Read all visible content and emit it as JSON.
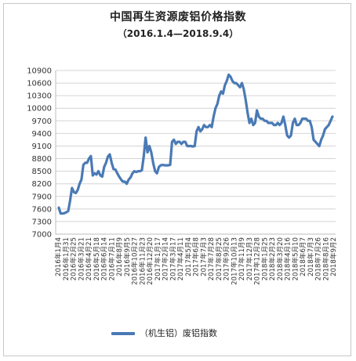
{
  "chart_data": {
    "type": "line",
    "title": "中国再生资源废铝价格指数",
    "subtitle": "（2016.1.4—2018.9.4）",
    "ylim": [
      7000,
      10900
    ],
    "yticks": [
      7000,
      7300,
      7600,
      7900,
      8200,
      8500,
      8800,
      9100,
      9400,
      9700,
      10000,
      10300,
      10600,
      10900
    ],
    "grid": true,
    "legend_position": "bottom",
    "line_color": "#4a7ab5",
    "x_tick_labels": [
      "2016年1月4",
      "2016年1月31",
      "2016年2月25",
      "2016年3月21",
      "2016年4月21",
      "2016年5月18",
      "2016年6月14",
      "2016年7月11",
      "2016年8月9",
      "2016年9月5",
      "2016年10月27",
      "2016年11月23",
      "2016年12月20",
      "2017年1月17",
      "2017年2月14",
      "2017年3月17",
      "2017年4月11",
      "2017年5月4",
      "2017年6月8",
      "2017年7月3",
      "2017年7月28",
      "2017年8月25",
      "2017年9月26",
      "2017年10月13",
      "2017年11月9",
      "2017年12月3",
      "2017年12月28",
      "2018年1月25",
      "2018年2月23",
      "2018年3月20",
      "2018年4月16",
      "2018年5月10",
      "2018年6月7",
      "2018年7月3",
      "2018年7月26",
      "2018年8月16",
      "2018年9月2"
    ],
    "series": [
      {
        "name": "（机生铝）废铝指数",
        "values": [
          7630,
          7490,
          7490,
          7500,
          7520,
          7550,
          7800,
          8100,
          8000,
          7980,
          8050,
          8200,
          8300,
          8650,
          8700,
          8700,
          8800,
          8860,
          8400,
          8450,
          8420,
          8500,
          8400,
          8370,
          8600,
          8700,
          8850,
          8900,
          8700,
          8550,
          8540,
          8450,
          8370,
          8300,
          8250,
          8250,
          8200,
          8300,
          8350,
          8450,
          8500,
          8480,
          8500,
          8500,
          8520,
          8850,
          9300,
          8950,
          9100,
          8950,
          8700,
          8500,
          8450,
          8600,
          8640,
          8650,
          8640,
          8640,
          8640,
          8650,
          9200,
          9250,
          9150,
          9200,
          9200,
          9150,
          9200,
          9200,
          9100,
          9100,
          9100,
          9090,
          9100,
          9450,
          9550,
          9450,
          9500,
          9600,
          9550,
          9550,
          9600,
          9550,
          9800,
          10000,
          10100,
          10300,
          10400,
          10350,
          10550,
          10650,
          10800,
          10750,
          10650,
          10600,
          10600,
          10550,
          10500,
          10600,
          10450,
          10200,
          9900,
          9650,
          9750,
          9600,
          9650,
          9950,
          9800,
          9750,
          9750,
          9700,
          9700,
          9650,
          9650,
          9650,
          9600,
          9600,
          9650,
          9600,
          9650,
          9800,
          9600,
          9350,
          9300,
          9350,
          9650,
          9750,
          9600,
          9600,
          9650,
          9750,
          9750,
          9750,
          9700,
          9700,
          9550,
          9250,
          9200,
          9150,
          9100,
          9250,
          9350,
          9500,
          9550,
          9600,
          9700,
          9800
        ]
      }
    ]
  }
}
